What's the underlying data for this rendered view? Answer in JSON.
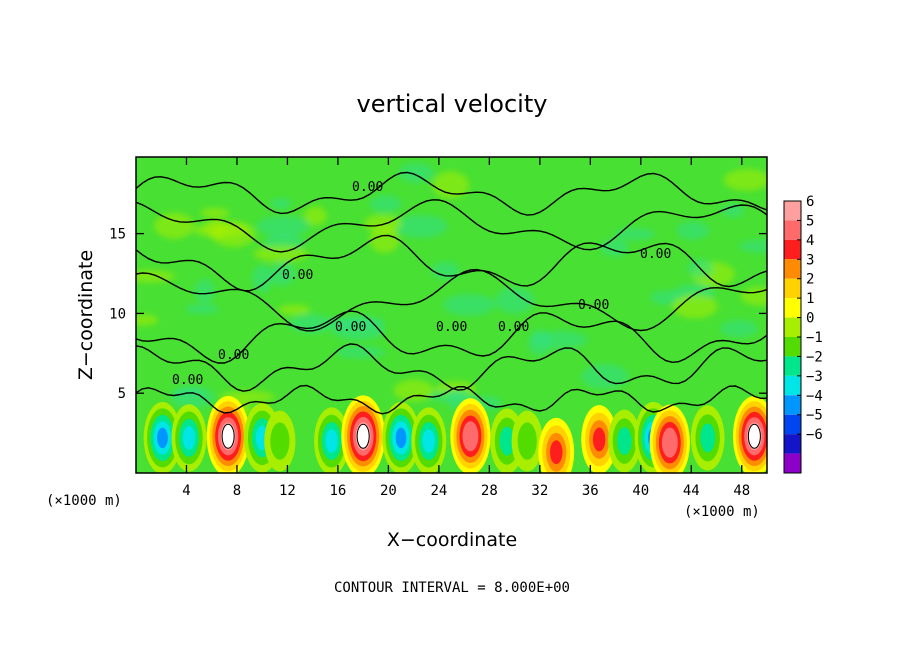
{
  "chart_data": {
    "type": "heatmap",
    "title": "vertical velocity",
    "xlabel": "X−coordinate",
    "ylabel": "Z−coordinate",
    "x_unit_left": "(×1000 m)",
    "x_unit_right": "(×1000 m)",
    "xlim": [
      0,
      50
    ],
    "ylim": [
      0,
      19.8
    ],
    "x_ticks": [
      4,
      8,
      12,
      16,
      20,
      24,
      28,
      32,
      36,
      40,
      44,
      48
    ],
    "y_ticks": [
      5,
      10,
      15
    ],
    "contour_interval_text": "CONTOUR INTERVAL = 8.000E+00",
    "contour_labels": [
      "0.00",
      "0.00",
      "0.00",
      "0.00",
      "0.00",
      "0.00",
      "0.00",
      "0.00",
      "0.00"
    ],
    "colorbar": {
      "min": -6,
      "max": 6,
      "levels": [
        6,
        5,
        4,
        3,
        2,
        1,
        0,
        -1,
        -2,
        -3,
        -4,
        -5,
        -6
      ],
      "level_labels": [
        "6",
        "5",
        "4",
        "3",
        "2",
        "1",
        "0",
        "−1",
        "−2",
        "−3",
        "−4",
        "−5",
        "−6"
      ],
      "colors": [
        "#ffa0a0",
        "#ff6a6a",
        "#ff1e1e",
        "#ff8c00",
        "#ffd200",
        "#ffff00",
        "#a8ee00",
        "#52dc00",
        "#00e68c",
        "#00e6e6",
        "#0096ff",
        "#0046f0",
        "#1414c8",
        "#8c00c8"
      ]
    },
    "background_color": "#48e032",
    "strong_features": [
      {
        "x": 2.1,
        "z": 2.2,
        "w": -4.5
      },
      {
        "x": 4.2,
        "z": 2.2,
        "w": -3.5
      },
      {
        "x": 7.3,
        "z": 2.3,
        "w": 6.5
      },
      {
        "x": 10.0,
        "z": 2.2,
        "w": -4.0
      },
      {
        "x": 11.4,
        "z": 2.0,
        "w": -2.0
      },
      {
        "x": 15.5,
        "z": 2.0,
        "w": -3.5
      },
      {
        "x": 18.0,
        "z": 2.3,
        "w": 6.8
      },
      {
        "x": 21.0,
        "z": 2.2,
        "w": -4.5
      },
      {
        "x": 23.2,
        "z": 2.0,
        "w": -3.5
      },
      {
        "x": 26.5,
        "z": 2.3,
        "w": 5.5
      },
      {
        "x": 29.4,
        "z": 2.0,
        "w": -3.0
      },
      {
        "x": 31.0,
        "z": 2.0,
        "w": -2.0
      },
      {
        "x": 33.3,
        "z": 1.3,
        "w": 3.8
      },
      {
        "x": 36.7,
        "z": 2.1,
        "w": 3.8
      },
      {
        "x": 38.7,
        "z": 2.0,
        "w": -2.5
      },
      {
        "x": 41.0,
        "z": 2.2,
        "w": -4.5
      },
      {
        "x": 42.3,
        "z": 1.9,
        "w": 5.5
      },
      {
        "x": 45.3,
        "z": 2.2,
        "w": -3.0
      },
      {
        "x": 49.0,
        "z": 2.3,
        "w": 6.5
      }
    ]
  }
}
